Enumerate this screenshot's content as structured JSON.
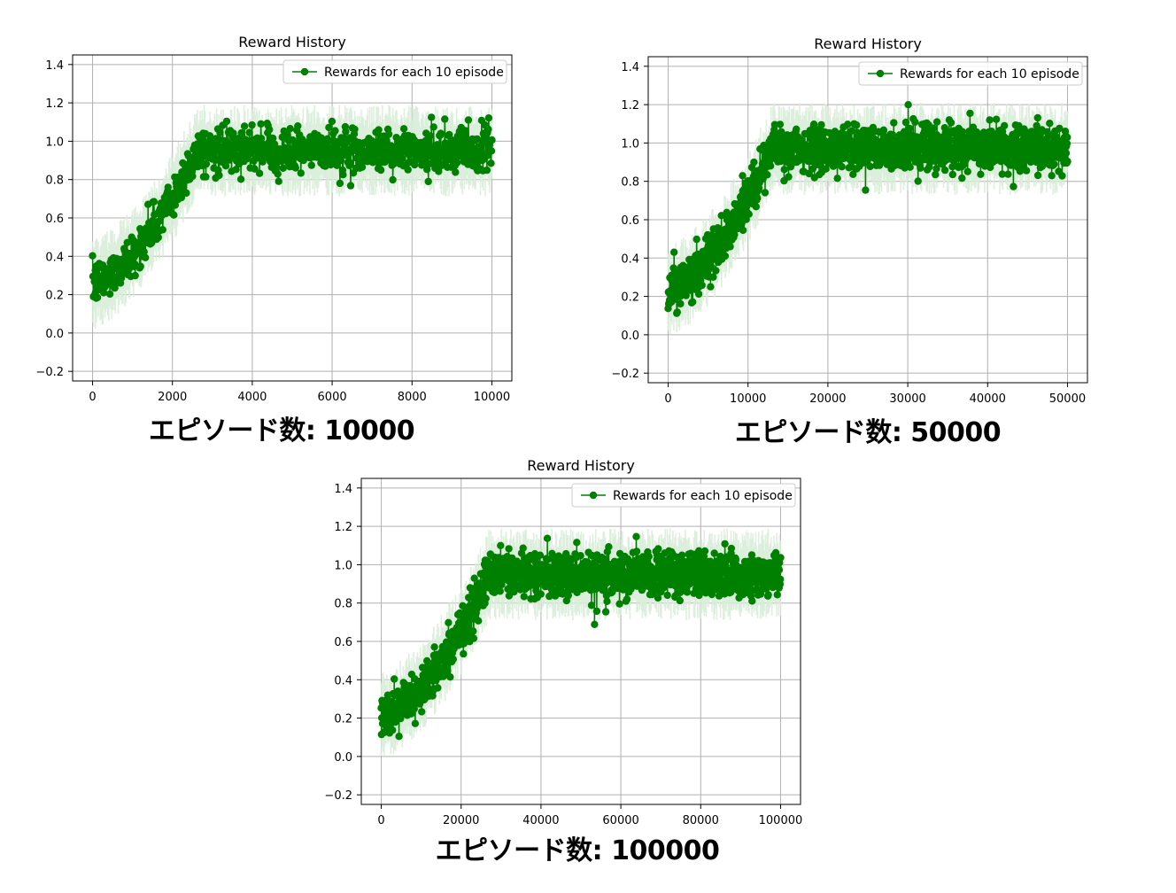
{
  "colors": {
    "line": "#008000",
    "band": "#d8ecd8",
    "grid": "#b0b0b0",
    "axis": "#000000",
    "legend_border": "#cccccc"
  },
  "captions": [
    "エピソード数: 10000",
    "エピソード数: 50000",
    "エピソード数: 100000"
  ],
  "chart_data": [
    {
      "type": "line",
      "title": "Reward History",
      "xlabel": "",
      "ylabel": "",
      "legend": "Rewards for each 10 episode",
      "legend_position": "top-right",
      "grid": true,
      "xlim": [
        -500,
        10500
      ],
      "ylim": [
        -0.25,
        1.45
      ],
      "xticks": [
        0,
        2000,
        4000,
        6000,
        8000,
        10000
      ],
      "xtick_labels": [
        "0",
        "2000",
        "4000",
        "6000",
        "8000",
        "10000"
      ],
      "yticks": [
        -0.2,
        0.0,
        0.2,
        0.4,
        0.6,
        0.8,
        1.0,
        1.2,
        1.4
      ],
      "ytick_labels": [
        "−0.2",
        "0.0",
        "0.2",
        "0.4",
        "0.6",
        "0.8",
        "1.0",
        "1.2",
        "1.4"
      ],
      "x_max": 10000,
      "plateau_start": 2600,
      "curve": {
        "start": 0.25,
        "plateau": 0.95
      },
      "series": [
        {
          "name": "Rewards for each 10 episode",
          "x": [
            0,
            500,
            1000,
            1500,
            2000,
            2500,
            3000,
            4000,
            5000,
            6000,
            7000,
            8000,
            9000,
            10000
          ],
          "y": [
            0.25,
            0.32,
            0.42,
            0.55,
            0.7,
            0.88,
            0.95,
            0.95,
            0.95,
            0.95,
            0.95,
            0.95,
            0.95,
            0.95
          ]
        }
      ]
    },
    {
      "type": "line",
      "title": "Reward History",
      "xlabel": "",
      "ylabel": "",
      "legend": "Rewards for each 10 episode",
      "legend_position": "top-right",
      "grid": true,
      "xlim": [
        -2500,
        52500
      ],
      "ylim": [
        -0.25,
        1.45
      ],
      "xticks": [
        0,
        10000,
        20000,
        30000,
        40000,
        50000
      ],
      "xtick_labels": [
        "0",
        "10000",
        "20000",
        "30000",
        "40000",
        "50000"
      ],
      "yticks": [
        -0.2,
        0.0,
        0.2,
        0.4,
        0.6,
        0.8,
        1.0,
        1.2,
        1.4
      ],
      "ytick_labels": [
        "−0.2",
        "0.0",
        "0.2",
        "0.4",
        "0.6",
        "0.8",
        "1.0",
        "1.2",
        "1.4"
      ],
      "x_max": 50000,
      "plateau_start": 13000,
      "curve": {
        "start": 0.22,
        "plateau": 0.97
      },
      "series": [
        {
          "name": "Rewards for each 10 episode",
          "x": [
            0,
            2500,
            5000,
            7500,
            10000,
            12500,
            15000,
            20000,
            30000,
            40000,
            50000
          ],
          "y": [
            0.22,
            0.32,
            0.42,
            0.55,
            0.72,
            0.9,
            0.97,
            0.97,
            0.97,
            0.97,
            0.97
          ]
        }
      ]
    },
    {
      "type": "line",
      "title": "Reward History",
      "xlabel": "",
      "ylabel": "",
      "legend": "Rewards for each 10 episode",
      "legend_position": "top-right",
      "grid": true,
      "xlim": [
        -5000,
        105000
      ],
      "ylim": [
        -0.25,
        1.45
      ],
      "xticks": [
        0,
        20000,
        40000,
        60000,
        80000,
        100000
      ],
      "xtick_labels": [
        "0",
        "20000",
        "40000",
        "60000",
        "80000",
        "100000"
      ],
      "yticks": [
        -0.2,
        0.0,
        0.2,
        0.4,
        0.6,
        0.8,
        1.0,
        1.2,
        1.4
      ],
      "ytick_labels": [
        "−0.2",
        "0.0",
        "0.2",
        "0.4",
        "0.6",
        "0.8",
        "1.0",
        "1.2",
        "1.4"
      ],
      "x_max": 100000,
      "plateau_start": 27000,
      "curve": {
        "start": 0.2,
        "plateau": 0.95
      },
      "series": [
        {
          "name": "Rewards for each 10 episode",
          "x": [
            0,
            5000,
            10000,
            15000,
            20000,
            25000,
            30000,
            40000,
            60000,
            80000,
            100000
          ],
          "y": [
            0.2,
            0.3,
            0.42,
            0.55,
            0.7,
            0.88,
            0.95,
            0.95,
            0.95,
            0.95,
            0.95
          ]
        }
      ]
    }
  ]
}
